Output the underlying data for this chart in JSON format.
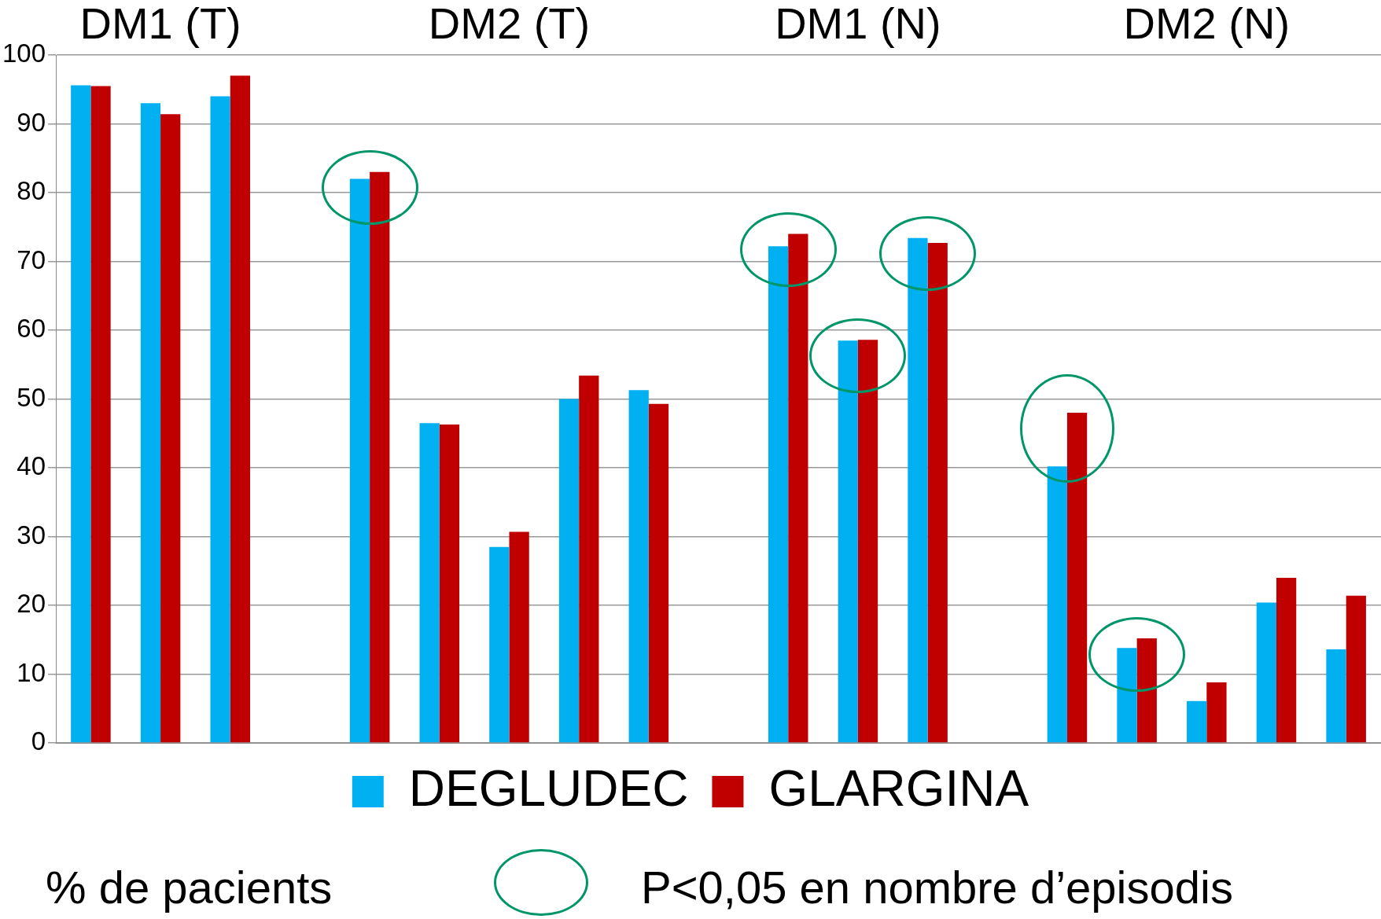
{
  "chart_data": {
    "type": "bar",
    "categories": [
      null,
      null,
      null,
      null,
      null,
      null,
      null,
      null,
      null,
      null,
      null,
      null,
      null,
      null,
      null,
      null,
      null,
      null,
      null
    ],
    "series": [
      {
        "name": "DEGLUDEC",
        "color": "#00b0f0",
        "values": [
          95.6,
          93,
          94,
          null,
          82,
          46.5,
          28.5,
          50,
          51.3,
          null,
          72.2,
          58.5,
          73.4,
          null,
          40.2,
          13.8,
          6.1,
          20.4,
          13.6
        ]
      },
      {
        "name": "GLARGINA",
        "color": "#c00000",
        "values": [
          95.5,
          91.4,
          97,
          null,
          83,
          46.3,
          30.7,
          53.4,
          49.3,
          null,
          74,
          58.6,
          72.7,
          null,
          48,
          15.2,
          8.8,
          24,
          21.4
        ]
      }
    ],
    "ylim": [
      0,
      100
    ],
    "yticks": [
      0,
      10,
      20,
      30,
      40,
      50,
      60,
      70,
      80,
      90,
      100
    ],
    "grid": "y",
    "legend": "bottom",
    "tick_labels": "y",
    "annotations": [
      "DM1 (T)",
      "DM2 (T)",
      "DM1 (N)",
      "DM2 (N)",
      "% de pacients",
      "P<0,05 en nombre d’episodis"
    ]
  }
}
